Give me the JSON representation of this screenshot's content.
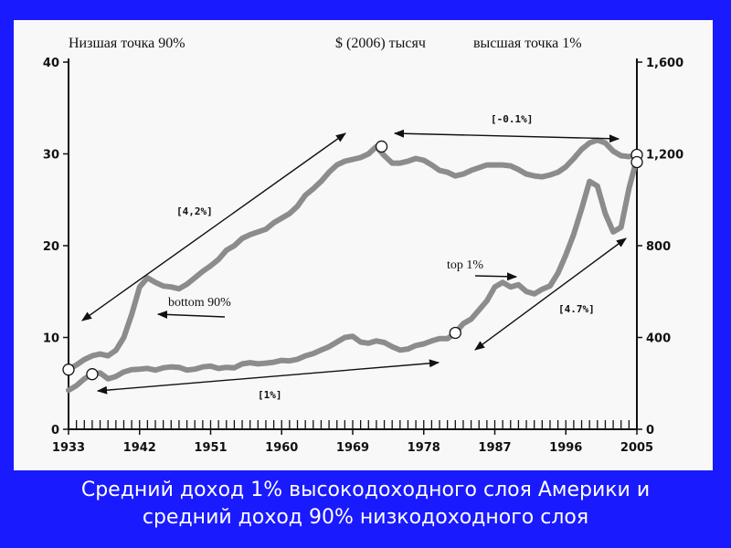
{
  "colors": {
    "background": "#1a1aff",
    "figure_background": "#f8f8f8",
    "series_gray": "#8c8c8c",
    "ink": "#111111",
    "caption_text": "#ffffff"
  },
  "caption": {
    "line1": "Средний доход 1% высокодоходного слоя Америки и",
    "line2": "средний доход 90% низкодоходного слоя"
  },
  "chart_data": {
    "type": "line",
    "x_ticks": [
      "1933",
      "1942",
      "1951",
      "1960",
      "1969",
      "1978",
      "1987",
      "1996",
      "2005"
    ],
    "y_left_ticks": [
      "0",
      "10",
      "20",
      "30",
      "40"
    ],
    "y_right_ticks": [
      "0",
      "400",
      "800",
      "1,200",
      "1,600"
    ],
    "ylim_left": [
      0,
      40
    ],
    "ylim_right": [
      0,
      1600
    ],
    "xlim": [
      1933,
      2005
    ],
    "header_labels": {
      "left": "Низшая точка 90%",
      "center": "$ (2006) тысяч",
      "right": "высшая точка 1%"
    },
    "series": [
      {
        "name": "bottom 90%",
        "axis": "left",
        "x": [
          1933,
          1934,
          1935,
          1936,
          1937,
          1938,
          1939,
          1940,
          1941,
          1942,
          1943,
          1944,
          1945,
          1946,
          1947,
          1948,
          1949,
          1950,
          1951,
          1952,
          1953,
          1954,
          1955,
          1956,
          1957,
          1958,
          1959,
          1960,
          1961,
          1962,
          1963,
          1964,
          1965,
          1966,
          1967,
          1968,
          1969,
          1970,
          1971,
          1972,
          1973,
          1974,
          1975,
          1976,
          1977,
          1978,
          1979,
          1980,
          1981,
          1982,
          1983,
          1984,
          1985,
          1986,
          1987,
          1988,
          1989,
          1990,
          1991,
          1992,
          1993,
          1994,
          1995,
          1996,
          1997,
          1998,
          1999,
          2000,
          2001,
          2002,
          2003,
          2004,
          2005
        ],
        "values": [
          6.5,
          7.0,
          7.6,
          8.0,
          8.2,
          8.0,
          8.6,
          10.0,
          12.5,
          15.5,
          16.5,
          16.0,
          15.6,
          15.5,
          15.3,
          15.8,
          16.5,
          17.2,
          17.8,
          18.5,
          19.5,
          20.0,
          20.8,
          21.2,
          21.5,
          21.8,
          22.5,
          23.0,
          23.5,
          24.3,
          25.5,
          26.2,
          27.0,
          28.0,
          28.8,
          29.2,
          29.4,
          29.6,
          30.0,
          30.8,
          29.8,
          29.0,
          29.0,
          29.2,
          29.5,
          29.3,
          28.8,
          28.2,
          28.0,
          27.6,
          27.8,
          28.2,
          28.5,
          28.8,
          28.8,
          28.8,
          28.7,
          28.3,
          27.8,
          27.6,
          27.5,
          27.7,
          28.0,
          28.6,
          29.5,
          30.5,
          31.2,
          31.5,
          31.2,
          30.3,
          29.8,
          29.7,
          29.9
        ]
      },
      {
        "name": "top 1%",
        "axis": "right",
        "x": [
          1933,
          1934,
          1935,
          1936,
          1937,
          1938,
          1939,
          1940,
          1941,
          1942,
          1943,
          1944,
          1945,
          1946,
          1947,
          1948,
          1949,
          1950,
          1951,
          1952,
          1953,
          1954,
          1955,
          1956,
          1957,
          1958,
          1959,
          1960,
          1961,
          1962,
          1963,
          1964,
          1965,
          1966,
          1967,
          1968,
          1969,
          1970,
          1971,
          1972,
          1973,
          1974,
          1975,
          1976,
          1977,
          1978,
          1979,
          1980,
          1981,
          1982,
          1983,
          1984,
          1985,
          1986,
          1987,
          1988,
          1989,
          1990,
          1991,
          1992,
          1993,
          1994,
          1995,
          1996,
          1997,
          1998,
          1999,
          2000,
          2001,
          2002,
          2003,
          2004,
          2005
        ],
        "values": [
          170,
          190,
          220,
          240,
          245,
          220,
          230,
          250,
          260,
          262,
          265,
          258,
          268,
          272,
          270,
          258,
          262,
          272,
          275,
          265,
          270,
          268,
          285,
          290,
          285,
          288,
          292,
          300,
          298,
          305,
          320,
          330,
          345,
          360,
          380,
          400,
          405,
          380,
          375,
          385,
          378,
          360,
          345,
          350,
          365,
          372,
          385,
          395,
          395,
          420,
          460,
          480,
          520,
          560,
          620,
          640,
          620,
          630,
          600,
          590,
          610,
          625,
          680,
          760,
          850,
          960,
          1080,
          1060,
          940,
          860,
          880,
          1050,
          1180
        ]
      }
    ],
    "annotations": [
      {
        "text": "[4,2%]"
      },
      {
        "text": "bottom 90%"
      },
      {
        "text": "[-0.1%]"
      },
      {
        "text": "top 1%"
      },
      {
        "text": "[4.7%]"
      },
      {
        "text": "[1%]"
      }
    ]
  }
}
